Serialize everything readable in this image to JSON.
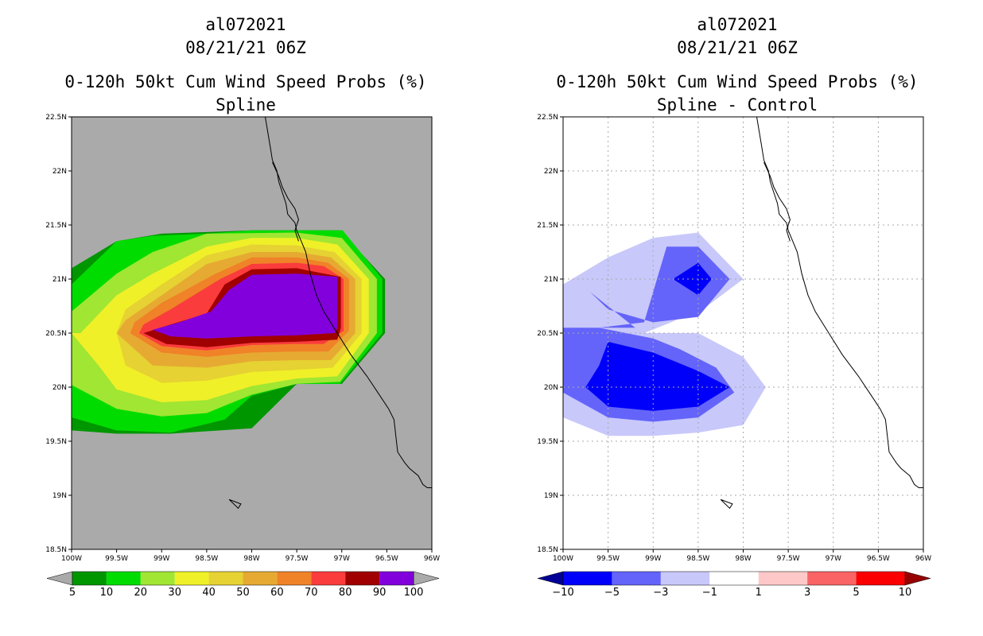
{
  "chart_data": [
    {
      "type": "heatmap",
      "storm_id": "al072021",
      "datetime": "08/21/21 06Z",
      "title": "0-120h 50kt Cum Wind Speed Probs (%)",
      "subtitle": "Spline",
      "xlim": [
        -100,
        -96
      ],
      "ylim": [
        18.5,
        22.5
      ],
      "xtick_labels": [
        "100W",
        "99.5W",
        "99W",
        "98.5W",
        "98W",
        "97.5W",
        "97W",
        "96.5W",
        "96W"
      ],
      "ytick_labels": [
        "18.5N",
        "19N",
        "19.5N",
        "20N",
        "20.5N",
        "21N",
        "21.5N",
        "22N",
        "22.5N"
      ],
      "grid": false,
      "background": "#aaaaaa",
      "colorbar": {
        "labels": [
          "5",
          "10",
          "20",
          "30",
          "40",
          "50",
          "60",
          "70",
          "80",
          "90",
          "100"
        ],
        "colors": [
          "#009600",
          "#00dc00",
          "#a0e632",
          "#f0f028",
          "#e6d232",
          "#e6aa32",
          "#f08228",
          "#fa3c3c",
          "#a00000",
          "#8200dc"
        ],
        "under_color": "#aaaaaa",
        "over_color": "#aaaaaa"
      },
      "contours": [
        {
          "level": 5,
          "color": "#009600",
          "points": [
            [
              -100,
              19.6
            ],
            [
              -99.5,
              19.57
            ],
            [
              -98.9,
              19.57
            ],
            [
              -98,
              19.62
            ],
            [
              -97.5,
              20.03
            ],
            [
              -97,
              20.03
            ],
            [
              -96.52,
              20.5
            ],
            [
              -96.52,
              21
            ],
            [
              -97.02,
              21.45
            ],
            [
              -98,
              21.45
            ],
            [
              -99,
              21.42
            ],
            [
              -99.5,
              21.35
            ],
            [
              -100,
              21.1
            ]
          ]
        },
        {
          "level": 10,
          "color": "#00dc00",
          "points": [
            [
              -100,
              19.72
            ],
            [
              -99.5,
              19.6
            ],
            [
              -98.9,
              19.58
            ],
            [
              -98.3,
              19.7
            ],
            [
              -98,
              19.92
            ],
            [
              -97.5,
              20.03
            ],
            [
              -97.02,
              20.03
            ],
            [
              -96.55,
              20.5
            ],
            [
              -96.55,
              21
            ],
            [
              -96.99,
              21.45
            ],
            [
              -98,
              21.45
            ],
            [
              -98.5,
              21.42
            ],
            [
              -99.1,
              21.4
            ],
            [
              -99.5,
              21.35
            ],
            [
              -100,
              20.95
            ]
          ]
        },
        {
          "level": 20,
          "color": "#a0e632",
          "points": [
            [
              -100,
              20.02
            ],
            [
              -99.5,
              19.8
            ],
            [
              -99,
              19.73
            ],
            [
              -98.5,
              19.76
            ],
            [
              -98,
              19.93
            ],
            [
              -97.5,
              20.03
            ],
            [
              -97.02,
              20.05
            ],
            [
              -96.61,
              20.5
            ],
            [
              -96.61,
              21
            ],
            [
              -97,
              21.38
            ],
            [
              -97.5,
              21.43
            ],
            [
              -98.5,
              21.42
            ],
            [
              -99.1,
              21.25
            ],
            [
              -99.5,
              21.05
            ],
            [
              -100,
              20.7
            ]
          ]
        },
        {
          "level": 30,
          "color": "#f0f028",
          "points": [
            [
              -100,
              20.5
            ],
            [
              -99.7,
              20.2
            ],
            [
              -99.5,
              19.98
            ],
            [
              -99,
              19.86
            ],
            [
              -98.5,
              19.88
            ],
            [
              -98,
              20.01
            ],
            [
              -97.5,
              20.08
            ],
            [
              -97.05,
              20.1
            ],
            [
              -96.7,
              20.5
            ],
            [
              -96.7,
              21
            ],
            [
              -97.05,
              21.32
            ],
            [
              -97.5,
              21.38
            ],
            [
              -98,
              21.38
            ],
            [
              -98.5,
              21.3
            ],
            [
              -99.1,
              21.05
            ],
            [
              -99.5,
              20.85
            ],
            [
              -99.9,
              20.5
            ]
          ]
        },
        {
          "level": 40,
          "color": "#e6d232",
          "points": [
            [
              -99.5,
              20.5
            ],
            [
              -99.4,
              20.2
            ],
            [
              -99,
              20.04
            ],
            [
              -98.5,
              20.06
            ],
            [
              -98,
              20.14
            ],
            [
              -97.5,
              20.16
            ],
            [
              -97.1,
              20.18
            ],
            [
              -96.78,
              20.5
            ],
            [
              -96.78,
              21
            ],
            [
              -97.08,
              21.25
            ],
            [
              -97.5,
              21.31
            ],
            [
              -98,
              21.32
            ],
            [
              -98.5,
              21.22
            ],
            [
              -99,
              20.95
            ],
            [
              -99.4,
              20.72
            ]
          ]
        },
        {
          "level": 50,
          "color": "#e6aa32",
          "points": [
            [
              -99.5,
              20.5
            ],
            [
              -99.1,
              20.2
            ],
            [
              -98.5,
              20.18
            ],
            [
              -98,
              20.24
            ],
            [
              -97.5,
              20.25
            ],
            [
              -97.12,
              20.25
            ],
            [
              -96.85,
              20.5
            ],
            [
              -96.85,
              21
            ],
            [
              -97.12,
              21.2
            ],
            [
              -97.5,
              21.25
            ],
            [
              -98,
              21.25
            ],
            [
              -98.5,
              21.14
            ],
            [
              -99,
              20.85
            ],
            [
              -99.4,
              20.62
            ]
          ]
        },
        {
          "level": 60,
          "color": "#f08228",
          "points": [
            [
              -99.35,
              20.5
            ],
            [
              -99,
              20.32
            ],
            [
              -98.5,
              20.28
            ],
            [
              -98,
              20.32
            ],
            [
              -97.5,
              20.33
            ],
            [
              -97.15,
              20.33
            ],
            [
              -96.92,
              20.52
            ],
            [
              -96.92,
              21
            ],
            [
              -97.15,
              21.15
            ],
            [
              -97.5,
              21.2
            ],
            [
              -98,
              21.2
            ],
            [
              -98.4,
              21.05
            ],
            [
              -99,
              20.78
            ],
            [
              -99.3,
              20.6
            ]
          ]
        },
        {
          "level": 70,
          "color": "#fa3c3c",
          "points": [
            [
              -99.25,
              20.5
            ],
            [
              -99,
              20.38
            ],
            [
              -98.5,
              20.34
            ],
            [
              -98,
              20.39
            ],
            [
              -97.5,
              20.4
            ],
            [
              -97.2,
              20.4
            ],
            [
              -96.98,
              20.52
            ],
            [
              -96.98,
              21
            ],
            [
              -97.2,
              21.12
            ],
            [
              -97.5,
              21.15
            ],
            [
              -98,
              21.14
            ],
            [
              -98.35,
              21
            ],
            [
              -98.9,
              20.72
            ],
            [
              -99.2,
              20.58
            ]
          ]
        },
        {
          "level": 80,
          "color": "#a00000",
          "points": [
            [
              -99.2,
              20.5
            ],
            [
              -98.95,
              20.4
            ],
            [
              -98.5,
              20.37
            ],
            [
              -98,
              20.41
            ],
            [
              -97.5,
              20.42
            ],
            [
              -97.05,
              20.44
            ],
            [
              -97.01,
              20.55
            ],
            [
              -97.01,
              21.02
            ],
            [
              -97.5,
              21.1
            ],
            [
              -98,
              21.09
            ],
            [
              -98.3,
              20.95
            ],
            [
              -98.5,
              20.68
            ],
            [
              -98.9,
              20.58
            ]
          ]
        },
        {
          "level": 90,
          "color": "#8200dc",
          "points": [
            [
              -99.1,
              20.53
            ],
            [
              -98.9,
              20.47
            ],
            [
              -98.5,
              20.45
            ],
            [
              -98,
              20.47
            ],
            [
              -97.5,
              20.48
            ],
            [
              -97.08,
              20.5
            ],
            [
              -97.05,
              20.55
            ],
            [
              -97.05,
              21.02
            ],
            [
              -97.5,
              21.05
            ],
            [
              -98,
              21.04
            ],
            [
              -98.25,
              20.9
            ],
            [
              -98.45,
              20.7
            ],
            [
              -98.8,
              20.6
            ]
          ]
        }
      ]
    },
    {
      "type": "heatmap",
      "storm_id": "al072021",
      "datetime": "08/21/21 06Z",
      "title": "0-120h 50kt Cum Wind Speed Probs (%)",
      "subtitle": "Spline - Control",
      "xlim": [
        -100,
        -96
      ],
      "ylim": [
        18.5,
        22.5
      ],
      "xtick_labels": [
        "100W",
        "99.5W",
        "99W",
        "98.5W",
        "98W",
        "97.5W",
        "97W",
        "96.5W",
        "96W"
      ],
      "ytick_labels": [
        "18.5N",
        "19N",
        "19.5N",
        "20N",
        "20.5N",
        "21N",
        "21.5N",
        "22N",
        "22.5N"
      ],
      "grid": true,
      "background": "#ffffff",
      "colorbar": {
        "labels": [
          "-10",
          "-5",
          "-3",
          "-1",
          "1",
          "3",
          "5",
          "10"
        ],
        "colors": [
          "#0000fa",
          "#6464fa",
          "#c8c8fa",
          "#ffffff",
          "#ffc8c8",
          "#fa6464",
          "#fa0000"
        ],
        "under_color": "#000096",
        "over_color": "#960000"
      },
      "contours": [
        {
          "level": -1,
          "color": "#c8c8fa",
          "points": [
            [
              -100,
              19.72
            ],
            [
              -99.5,
              19.55
            ],
            [
              -99,
              19.55
            ],
            [
              -98.5,
              19.58
            ],
            [
              -98,
              19.65
            ],
            [
              -97.75,
              20
            ],
            [
              -98,
              20.28
            ],
            [
              -98.5,
              20.5
            ],
            [
              -99.1,
              20.5
            ],
            [
              -98.8,
              20.6
            ],
            [
              -98.4,
              20.75
            ],
            [
              -98,
              21
            ],
            [
              -98.5,
              21.43
            ],
            [
              -99,
              21.38
            ],
            [
              -99.5,
              21.2
            ],
            [
              -100,
              20.95
            ]
          ]
        },
        {
          "level": -3,
          "color": "#6464fa",
          "points": [
            [
              -100,
              19.95
            ],
            [
              -99.5,
              19.72
            ],
            [
              -99,
              19.68
            ],
            [
              -98.5,
              19.72
            ],
            [
              -98.1,
              19.95
            ],
            [
              -98.3,
              20.18
            ],
            [
              -98.7,
              20.35
            ],
            [
              -99,
              20.45
            ],
            [
              -99.6,
              20.55
            ],
            [
              -99.1,
              20.6
            ],
            [
              -98.85,
              21.3
            ],
            [
              -98.5,
              21.3
            ],
            [
              -98.15,
              21
            ],
            [
              -98.5,
              20.65
            ],
            [
              -99,
              20.6
            ],
            [
              -99.5,
              20.72
            ],
            [
              -99.7,
              20.88
            ],
            [
              -99.2,
              20.55
            ],
            [
              -100,
              20.55
            ]
          ]
        },
        {
          "level": -5,
          "color": "#0000fa",
          "points": [
            [
              -99.75,
              20
            ],
            [
              -99.5,
              19.82
            ],
            [
              -99,
              19.78
            ],
            [
              -98.5,
              19.82
            ],
            [
              -98.15,
              20
            ],
            [
              -98.5,
              20.15
            ],
            [
              -99,
              20.32
            ],
            [
              -99.5,
              20.42
            ],
            [
              -99.6,
              20.2
            ]
          ]
        },
        {
          "level": -5,
          "color": "#0000fa",
          "points": [
            [
              -98.78,
              21
            ],
            [
              -98.5,
              21.15
            ],
            [
              -98.35,
              21
            ],
            [
              -98.5,
              20.85
            ]
          ]
        }
      ]
    }
  ]
}
